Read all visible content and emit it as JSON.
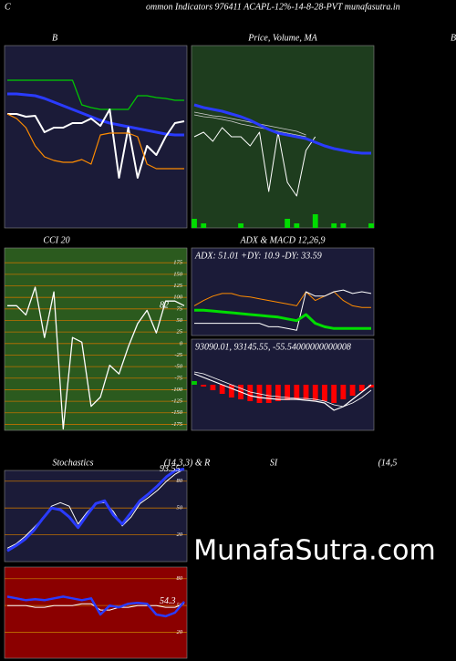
{
  "header": {
    "letter": "C",
    "text": "ommon  Indicators 976411 ACAPL-12%-14-8-28-PVT munafasutra.in"
  },
  "titles": [
    "B",
    "Price,  Volume,  MA",
    "B",
    "CCI 20",
    "ADX  & MACD 12,26,9",
    "Stochastics",
    "(14,3,3) & R",
    "SI",
    "(14,5"
  ],
  "watermark": "MunafaSutra.com",
  "chart_data": [
    {
      "type": "line",
      "background": "#1b1b38",
      "ylim": [
        0,
        100
      ],
      "series": [
        {
          "color": "#00cc00",
          "line_width": 1.2,
          "values": [
            81,
            81,
            81,
            81,
            81,
            81,
            81,
            81,
            67.5,
            66,
            65,
            65,
            65,
            65,
            72.5,
            72.5,
            71.5,
            71,
            70,
            70
          ]
        },
        {
          "color": "#2a3bff",
          "line_width": 3,
          "values": [
            73.5,
            73.5,
            73,
            72.5,
            71,
            69,
            67,
            65,
            63,
            61,
            59,
            57.5,
            56.5,
            55.5,
            54.5,
            53.5,
            52.5,
            51.5,
            51,
            51
          ]
        },
        {
          "color": "#ffffff",
          "line_width": 2,
          "values": [
            62.5,
            62.5,
            61,
            61.5,
            52.5,
            55,
            55,
            57.5,
            57.5,
            60,
            56,
            65,
            27.5,
            55,
            27.5,
            45,
            40,
            50,
            57.5,
            58.5
          ]
        },
        {
          "color": "#ff8c00",
          "line_width": 1.2,
          "values": [
            62.5,
            60,
            55,
            45,
            39,
            37,
            36,
            36,
            37.5,
            35,
            51,
            52,
            52,
            52,
            50,
            35,
            32.5,
            32.5,
            32.5,
            32.5
          ]
        }
      ]
    },
    {
      "type": "line",
      "background": "#1e3d1e",
      "ylim": [
        0,
        100
      ],
      "y2lim": [
        0,
        40
      ],
      "series": [
        {
          "color": "#00dd00",
          "style": "bar",
          "axis": "y2",
          "values": [
            2,
            1,
            0,
            0,
            0,
            1,
            0,
            0,
            0,
            0,
            2,
            1,
            0,
            3,
            0,
            1,
            1,
            0,
            0,
            1
          ]
        },
        {
          "color": "#cccccc",
          "line_width": 0.8,
          "values": [
            62,
            61,
            60.5,
            59.5,
            58.5,
            57,
            56,
            55,
            54,
            53,
            52,
            51,
            50,
            null,
            null,
            null,
            null,
            null,
            null,
            null
          ]
        },
        {
          "color": "#cccccc",
          "line_width": 0.8,
          "values": [
            63.5,
            62.5,
            61.5,
            61,
            60,
            59,
            58,
            57,
            56,
            55,
            54,
            53,
            51,
            null,
            null,
            null,
            null,
            null,
            null,
            null
          ]
        },
        {
          "color": "#ffffff",
          "line_width": 1,
          "values": [
            50,
            52.5,
            47.5,
            55,
            50,
            50,
            45,
            52.5,
            20,
            52.5,
            25,
            17.5,
            42.5,
            50,
            null,
            null,
            null,
            null,
            null,
            null
          ]
        },
        {
          "color": "#2a3bff",
          "line_width": 3,
          "values": [
            67.5,
            66,
            65,
            64,
            62.5,
            61,
            59,
            56.5,
            54,
            52,
            51,
            50,
            49,
            47,
            45,
            43.5,
            42.5,
            41.5,
            41,
            41
          ]
        }
      ]
    },
    {
      "type": "line",
      "background": "#2b5a1e",
      "grid_color": "#c07000",
      "ylim": [
        -188,
        207
      ],
      "yticks": [
        175,
        150,
        125,
        100,
        75,
        50,
        25,
        0,
        -25,
        -50,
        -75,
        -100,
        -125,
        -150,
        -175
      ],
      "label": "82",
      "series": [
        {
          "color": "#ffffff",
          "line_width": 1.3,
          "values": [
            82,
            82,
            62,
            122,
            13,
            112,
            -185,
            13,
            3,
            -136,
            -116,
            -47,
            -66,
            -7,
            43,
            72,
            23,
            92,
            92,
            82
          ]
        }
      ]
    },
    {
      "type": "line",
      "background": "#1b1b38",
      "ylim": [
        0,
        100
      ],
      "info": "ADX: 51.01 +DY: 10.9 -DY: 33.59",
      "series": [
        {
          "color": "#ff8c00",
          "line_width": 1,
          "values": [
            34,
            40,
            45,
            48,
            48,
            45,
            44,
            42,
            40,
            38,
            36,
            34,
            50,
            40,
            45,
            50,
            40,
            34,
            32,
            32
          ]
        },
        {
          "color": "#ffffff",
          "line_width": 1,
          "values": [
            14,
            14,
            14,
            14,
            14,
            14,
            14,
            14,
            10,
            10,
            8,
            6,
            50,
            45,
            45,
            50,
            52,
            48,
            50,
            48
          ]
        },
        {
          "color": "#00dd00",
          "line_width": 3,
          "values": [
            29,
            29,
            28,
            27,
            26,
            25,
            24,
            23,
            22,
            21,
            19,
            17,
            24,
            14,
            10,
            8,
            8,
            8,
            8,
            8
          ]
        }
      ]
    },
    {
      "type": "line",
      "background": "#1b1b38",
      "ylim": [
        -50,
        50
      ],
      "info": "93090.01,  93145.55,  -55.54000000000008",
      "series": [
        {
          "color": "#ff0000",
          "positive_color": "#00cc00",
          "style": "bar",
          "values": [
            4,
            -2,
            -6,
            -10,
            -14,
            -16,
            -18,
            -20,
            -20,
            -18,
            -17,
            -16,
            -16,
            -17,
            -18,
            -20,
            -16,
            -12,
            -7,
            -3
          ]
        },
        {
          "color": "#ffffff",
          "line_width": 1.2,
          "values": [
            12,
            8,
            4,
            0,
            -4,
            -8,
            -12,
            -14,
            -15,
            -16,
            -16,
            -16,
            -17,
            -18,
            -20,
            -28,
            -24,
            -16,
            -8,
            0
          ]
        },
        {
          "color": "#ffffff",
          "line_width": 0.8,
          "values": [
            14,
            12,
            8,
            4,
            0,
            -4,
            -8,
            -10,
            -12,
            -13,
            -14,
            -15,
            -15,
            -16,
            -18,
            -22,
            -24,
            -20,
            -14,
            -6
          ]
        }
      ]
    },
    {
      "type": "line",
      "background": "#1b1b38",
      "grid_color": "#c07000",
      "ylim": [
        -10,
        92
      ],
      "yticks": [
        80,
        50,
        20
      ],
      "label": "93.55",
      "series": [
        {
          "color": "#ffffff",
          "line_width": 1,
          "values": [
            5,
            10,
            18,
            28,
            38,
            52,
            56,
            52,
            32,
            45,
            55,
            56,
            46,
            30,
            40,
            55,
            62,
            70,
            80,
            88,
            93.55
          ]
        },
        {
          "color": "#2a3bff",
          "line_width": 3,
          "values": [
            2,
            8,
            15,
            25,
            38,
            50,
            48,
            40,
            28,
            42,
            55,
            58,
            42,
            32,
            45,
            58,
            66,
            75,
            85,
            92,
            93.55
          ]
        }
      ]
    },
    {
      "type": "line",
      "background": "#8b0000",
      "grid_color": "#c07000",
      "ylim": [
        -9,
        93
      ],
      "yticks": [
        80,
        50,
        20
      ],
      "label": "54.3",
      "series": [
        {
          "color": "#ffffff",
          "line_width": 1,
          "values": [
            50,
            50,
            50,
            48,
            48,
            50,
            50,
            50,
            52,
            52,
            45,
            45,
            48,
            48,
            50,
            50,
            50,
            48,
            48,
            52
          ]
        },
        {
          "color": "#2a3bff",
          "line_width": 2.5,
          "values": [
            60,
            58,
            56,
            57,
            56,
            58,
            60,
            58,
            56,
            58,
            40,
            50,
            48,
            52,
            53,
            52,
            40,
            38,
            42,
            54.3
          ]
        }
      ]
    }
  ]
}
